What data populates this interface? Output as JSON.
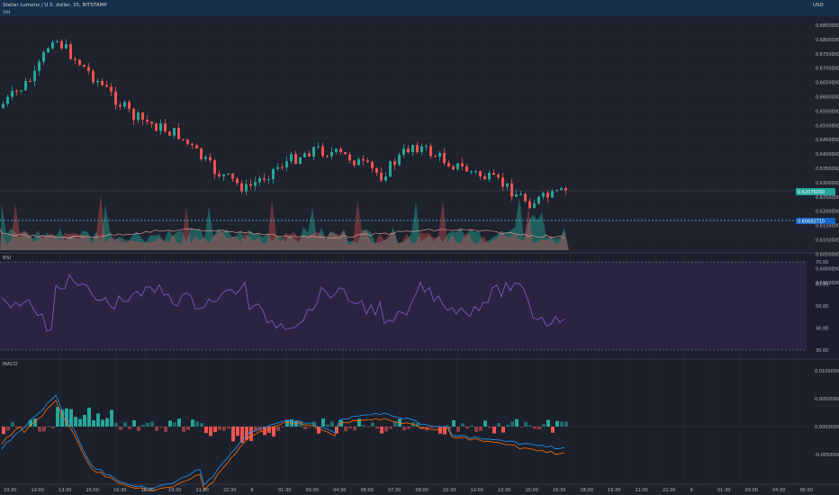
{
  "header": {
    "symbol_text": "Stellar Lumens / U.S. dollar, 15, BITSTAMP",
    "volume_label": "Vol",
    "currency": "USD"
  },
  "rsi_pane": {
    "label": "RSI",
    "ticks": [
      "70.00",
      "60.00",
      "50.00",
      "40.00",
      "30.00"
    ]
  },
  "macd_pane": {
    "label": "MACD",
    "ticks": [
      "0.01000000",
      "0.00500000",
      "0.00000000",
      "-0.00500000"
    ]
  },
  "price_axis": {
    "ticks": [
      "0.68500000",
      "0.68000000",
      "0.67500000",
      "0.67000000",
      "0.66500000",
      "0.66000000",
      "0.65500000",
      "0.65000000",
      "0.64500000",
      "0.64000000",
      "0.63500000",
      "0.63000000",
      "0.62500000",
      "0.62000000",
      "0.61500000",
      "0.61000000",
      "0.60500000",
      "0.60000000",
      "0.59500000"
    ],
    "last_price_label": "0.62076000",
    "line_label": "0.60682710"
  },
  "time_axis": {
    "labels": [
      "10:30",
      "12:00",
      "13:30",
      "15:00",
      "16:30",
      "18:00",
      "19:30",
      "21:00",
      "22:30",
      "8",
      "01:30",
      "03:00",
      "04:30",
      "06:00",
      "07:30",
      "09:00",
      "10:30",
      "12:00",
      "13:30",
      "15:00",
      "16:30",
      "18:00",
      "19:30",
      "21:00",
      "22:30",
      "9",
      "01:30",
      "03:00",
      "04:30",
      "06:00"
    ]
  },
  "colors": {
    "bull": "#26a69a",
    "bear": "#ef5350",
    "rsi_line": "#7e57c2",
    "macd_line": "#2196f3",
    "signal_line": "#ff6d00"
  }
}
